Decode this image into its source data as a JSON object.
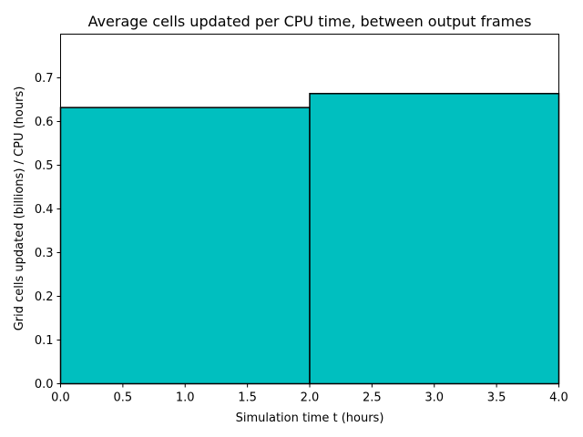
{
  "chart_data": {
    "type": "bar",
    "title": "Average cells updated per CPU time, between output frames",
    "xlabel": "Simulation time t (hours)",
    "ylabel": "Grid cells updated (billions) / CPU (hours)",
    "bars": [
      {
        "x_start": 0.0,
        "x_end": 2.0,
        "value": 0.632
      },
      {
        "x_start": 2.0,
        "x_end": 4.0,
        "value": 0.664
      }
    ],
    "xlim": [
      0.0,
      4.0
    ],
    "ylim": [
      0.0,
      0.8
    ],
    "xticks": [
      "0.0",
      "0.5",
      "1.0",
      "1.5",
      "2.0",
      "2.5",
      "3.0",
      "3.5",
      "4.0"
    ],
    "yticks": [
      "0.0",
      "0.1",
      "0.2",
      "0.3",
      "0.4",
      "0.5",
      "0.6",
      "0.7"
    ],
    "grid": false,
    "bar_color": "#00bfbf",
    "edge_color": "#000000"
  }
}
